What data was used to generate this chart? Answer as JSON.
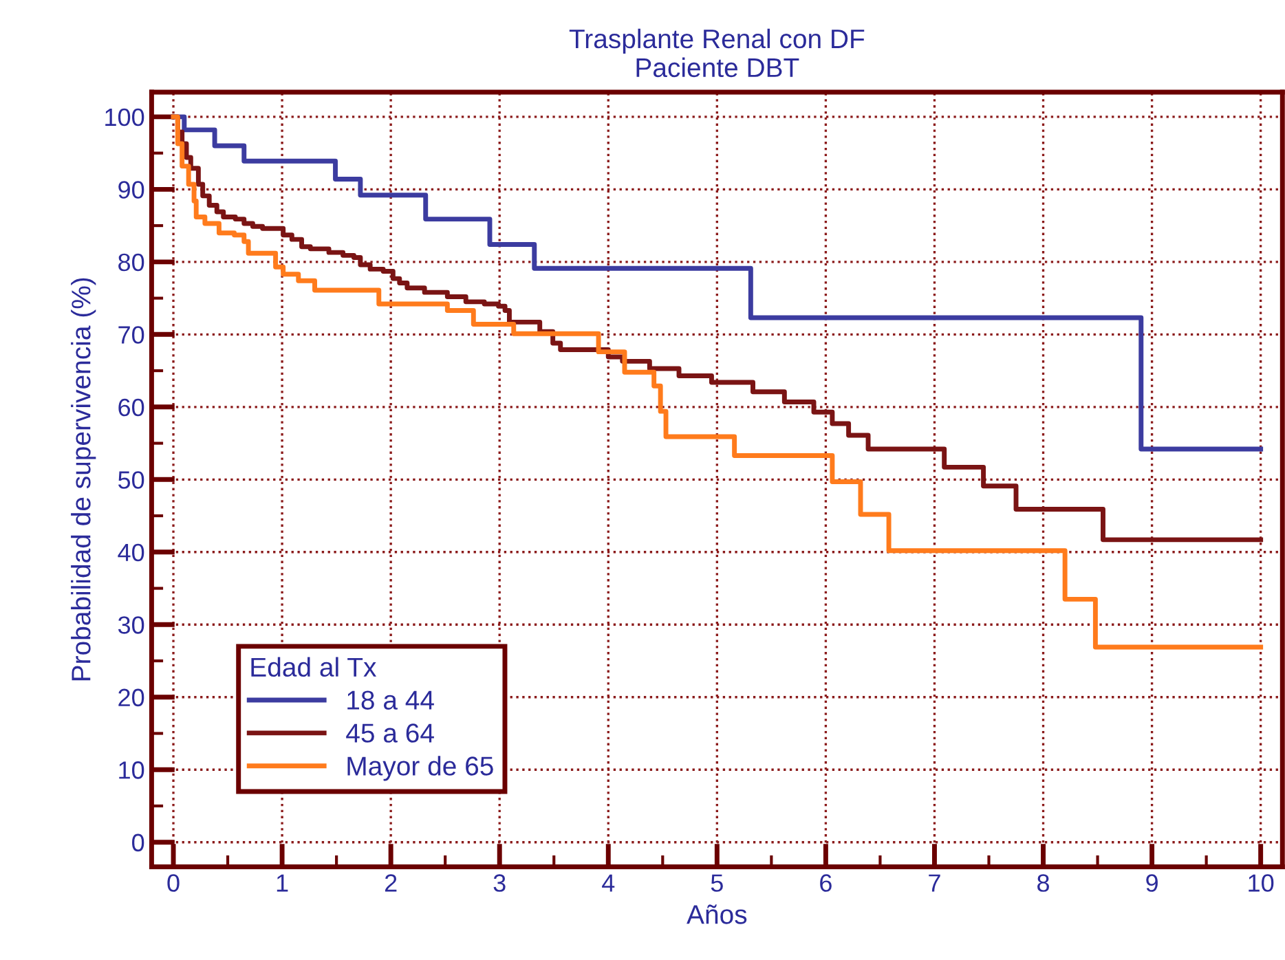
{
  "chart_data": {
    "type": "step",
    "title": "Trasplante Renal con DF\nPaciente DBT",
    "xlabel": "Años",
    "ylabel": "Probabilidad de supervivencia (%)",
    "legend_title": "Edad al Tx",
    "series": [
      {
        "name": "18 a 44",
        "color": "#3c3ca0",
        "x": [
          0,
          0.1,
          0.38,
          0.65,
          1.49,
          1.72,
          2.32,
          2.91,
          3.32,
          5.31,
          8.9,
          10
        ],
        "values": [
          100,
          98.2,
          96.0,
          93.9,
          91.4,
          89.2,
          85.9,
          82.4,
          79.1,
          72.3,
          54.2,
          54.2
        ]
      },
      {
        "name": "45 a 64",
        "color": "#7a1414",
        "x": [
          0,
          0.04,
          0.08,
          0.12,
          0.16,
          0.23,
          0.27,
          0.33,
          0.4,
          0.46,
          0.57,
          0.65,
          0.73,
          0.82,
          1.01,
          1.09,
          1.18,
          1.26,
          1.43,
          1.56,
          1.66,
          1.72,
          1.81,
          1.93,
          2.02,
          2.08,
          2.15,
          2.31,
          2.52,
          2.69,
          2.86,
          2.99,
          3.05,
          3.09,
          3.37,
          3.49,
          3.56,
          4.0,
          4.13,
          4.38,
          4.65,
          4.95,
          5.33,
          5.62,
          5.89,
          6.06,
          6.21,
          6.39,
          7.09,
          7.45,
          7.75,
          8.55,
          10
        ],
        "values": [
          100,
          97.9,
          96.3,
          94.4,
          92.9,
          90.7,
          89.1,
          87.8,
          86.9,
          86.2,
          85.9,
          85.3,
          84.9,
          84.6,
          83.7,
          83.1,
          82.1,
          81.8,
          81.3,
          80.9,
          80.6,
          79.6,
          79.0,
          78.7,
          77.7,
          77.1,
          76.4,
          75.8,
          75.2,
          74.5,
          74.2,
          73.9,
          73.3,
          71.7,
          70.4,
          68.8,
          67.9,
          66.9,
          66.3,
          65.3,
          64.3,
          63.4,
          62.1,
          60.7,
          59.3,
          57.7,
          56.1,
          54.2,
          51.7,
          49.1,
          45.9,
          41.7,
          41.7
        ]
      },
      {
        "name": "Mayor de 65",
        "color": "#ff7b1c",
        "x": [
          0,
          0.04,
          0.08,
          0.14,
          0.19,
          0.21,
          0.29,
          0.42,
          0.56,
          0.65,
          0.69,
          0.94,
          1.01,
          1.15,
          1.3,
          1.89,
          2.52,
          2.76,
          3.13,
          3.91,
          4.15,
          4.42,
          4.48,
          4.53,
          5.16,
          6.06,
          6.32,
          6.58,
          8.2,
          8.48,
          10
        ],
        "values": [
          100,
          96.3,
          93.2,
          90.7,
          88.4,
          86.2,
          85.3,
          84.0,
          83.7,
          82.8,
          81.2,
          79.3,
          78.3,
          77.4,
          76.1,
          74.2,
          73.3,
          71.4,
          70.1,
          67.6,
          64.8,
          62.9,
          59.4,
          55.9,
          53.3,
          49.7,
          45.2,
          40.2,
          33.5,
          26.9,
          26.9
        ]
      }
    ],
    "xlim": [
      -0.2,
      10.2
    ],
    "ylim": [
      -3.4,
      103.4
    ],
    "xticks": [
      0,
      1,
      2,
      3,
      4,
      5,
      6,
      7,
      8,
      9,
      10
    ],
    "yticks": [
      0,
      10,
      20,
      30,
      40,
      50,
      60,
      70,
      80,
      90,
      100
    ],
    "grid": true,
    "legend": "bottom left",
    "line_style": "solid"
  }
}
